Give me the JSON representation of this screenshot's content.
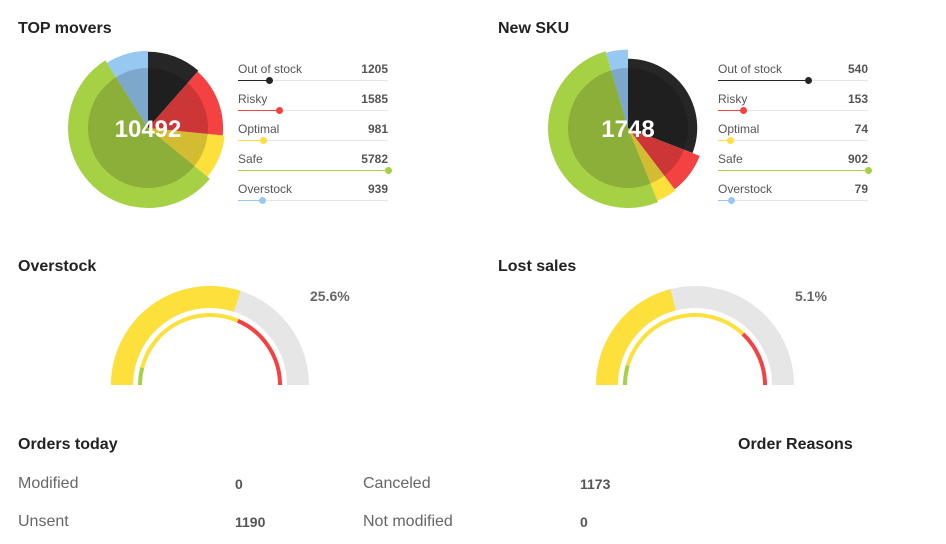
{
  "colors": {
    "out_of_stock": "#262626",
    "risky": "#f44141",
    "optimal": "#fde03c",
    "safe": "#a7d145",
    "overstock": "#96c8f2",
    "gauge_bg": "#e6e6e6"
  },
  "top_movers": {
    "title": "TOP movers",
    "total": "10492"
  },
  "new_sku": {
    "title": "New SKU",
    "total": "1748"
  },
  "overstock_gauge": {
    "title": "Overstock",
    "percent_label": "25.6%"
  },
  "lost_sales_gauge": {
    "title": "Lost sales",
    "percent_label": "5.1%"
  },
  "orders_today": {
    "title": "Orders today",
    "reasons_title": "Order Reasons",
    "modified_label": "Modified",
    "modified_value": "0",
    "unsent_label": "Unsent",
    "unsent_value": "1190",
    "canceled_label": "Canceled",
    "canceled_value": "1173",
    "not_modified_label": "Not modified",
    "not_modified_value": "0"
  },
  "chart_data": [
    {
      "type": "pie",
      "title": "TOP movers",
      "center_label": "10492",
      "categories": [
        "Out of stock",
        "Risky",
        "Optimal",
        "Safe",
        "Overstock"
      ],
      "values": [
        1205,
        1585,
        981,
        5782,
        939
      ],
      "legend": "right"
    },
    {
      "type": "pie",
      "title": "New SKU",
      "center_label": "1748",
      "categories": [
        "Out of stock",
        "Risky",
        "Optimal",
        "Safe",
        "Overstock"
      ],
      "values": [
        540,
        153,
        74,
        902,
        79
      ],
      "legend": "right"
    },
    {
      "type": "gauge",
      "title": "Overstock",
      "value_percent": 25.6,
      "outer_fill_fraction": 0.6,
      "inner_series": [
        {
          "name": "Safe",
          "fraction": 0.08
        },
        {
          "name": "Optimal",
          "fraction": 0.55
        },
        {
          "name": "Risky",
          "fraction": 0.37
        }
      ]
    },
    {
      "type": "gauge",
      "title": "Lost sales",
      "value_percent": 5.1,
      "outer_fill_fraction": 0.42,
      "inner_series": [
        {
          "name": "Safe",
          "fraction": 0.09
        },
        {
          "name": "Optimal",
          "fraction": 0.65
        },
        {
          "name": "Risky",
          "fraction": 0.26
        }
      ]
    }
  ]
}
